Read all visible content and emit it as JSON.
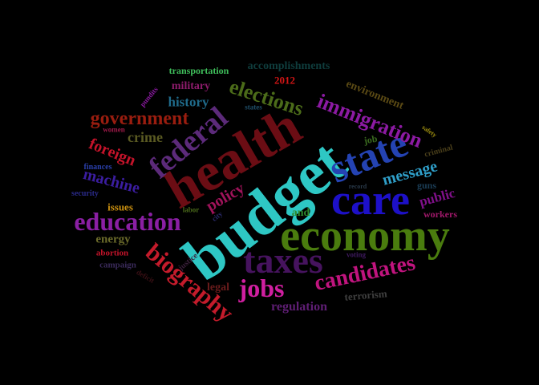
{
  "words": [
    {
      "text": "budget",
      "color": "#2ec7c4",
      "weight": 100
    },
    {
      "text": "health",
      "color": "#6b0d14",
      "weight": 95
    },
    {
      "text": "economy",
      "color": "#4a7c0e",
      "weight": 90
    },
    {
      "text": "care",
      "color": "#1d10c8",
      "weight": 85
    },
    {
      "text": "state",
      "color": "#2443b3",
      "weight": 75
    },
    {
      "text": "taxes",
      "color": "#46135e",
      "weight": 75
    },
    {
      "text": "federal",
      "color": "#5c2a7a",
      "weight": 65
    },
    {
      "text": "education",
      "color": "#8a1fa3",
      "weight": 60
    },
    {
      "text": "biography",
      "color": "#c41b2b",
      "weight": 58
    },
    {
      "text": "candidates",
      "color": "#c0147e",
      "weight": 55
    },
    {
      "text": "jobs",
      "color": "#d01fa0",
      "weight": 55
    },
    {
      "text": "immigration",
      "color": "#8c1aa3",
      "weight": 50
    },
    {
      "text": "elections",
      "color": "#4b6b19",
      "weight": 50
    },
    {
      "text": "government",
      "color": "#9a1d0f",
      "weight": 45
    },
    {
      "text": "message",
      "color": "#2f9fc9",
      "weight": 42
    },
    {
      "text": "machine",
      "color": "#3b1da0",
      "weight": 40
    },
    {
      "text": "foreign",
      "color": "#c4132a",
      "weight": 40
    },
    {
      "text": "policy",
      "color": "#a0135a",
      "weight": 38
    },
    {
      "text": "history",
      "color": "#1f6a8a",
      "weight": 35
    },
    {
      "text": "public",
      "color": "#80108a",
      "weight": 32
    },
    {
      "text": "crime",
      "color": "#5a5a22",
      "weight": 32
    },
    {
      "text": "regulation",
      "color": "#5f1e74",
      "weight": 30
    },
    {
      "text": "environment",
      "color": "#5b4a14",
      "weight": 28
    },
    {
      "text": "energy",
      "color": "#6a6a2a",
      "weight": 28
    },
    {
      "text": "military",
      "color": "#8d1b6b",
      "weight": 26
    },
    {
      "text": "accomplishments",
      "color": "#0f3d3d",
      "weight": 26
    },
    {
      "text": "legal",
      "color": "#6b1c1c",
      "weight": 25
    },
    {
      "text": "terrorism",
      "color": "#3f3f3f",
      "weight": 24
    },
    {
      "text": "transportation",
      "color": "#3fbf5b",
      "weight": 22
    },
    {
      "text": "2012",
      "color": "#d01515",
      "weight": 22
    },
    {
      "text": "and",
      "color": "#2e8a2e",
      "weight": 22
    },
    {
      "text": "issues",
      "color": "#c98f10",
      "weight": 22
    },
    {
      "text": "workers",
      "color": "#a0186a",
      "weight": 22
    },
    {
      "text": "guns",
      "color": "#1b3d55",
      "weight": 22
    },
    {
      "text": "job",
      "color": "#3a6a1f",
      "weight": 20
    },
    {
      "text": "campaign",
      "color": "#3a2a5a",
      "weight": 18
    },
    {
      "text": "abortion",
      "color": "#c4132a",
      "weight": 18
    },
    {
      "text": "finances",
      "color": "#2a3faa",
      "weight": 16
    },
    {
      "text": "security",
      "color": "#2a2a8a",
      "weight": 16
    },
    {
      "text": "labor",
      "color": "#4a6a1a",
      "weight": 14
    },
    {
      "text": "criminal",
      "color": "#4a3f1a",
      "weight": 14
    },
    {
      "text": "states",
      "color": "#1f4f6a",
      "weight": 14
    },
    {
      "text": "women",
      "color": "#a01a4a",
      "weight": 14
    },
    {
      "text": "pundits",
      "color": "#8a1aa0",
      "weight": 13
    },
    {
      "text": "justice",
      "color": "#3a1f3a",
      "weight": 13
    },
    {
      "text": "voting",
      "color": "#3f1a5f",
      "weight": 12
    },
    {
      "text": "city",
      "color": "#2a2a6a",
      "weight": 12
    },
    {
      "text": "record",
      "color": "#2a3a4a",
      "weight": 12
    },
    {
      "text": "safety",
      "color": "#a09010",
      "weight": 12
    },
    {
      "text": "deficit",
      "color": "#3a0f14",
      "weight": 12
    }
  ]
}
